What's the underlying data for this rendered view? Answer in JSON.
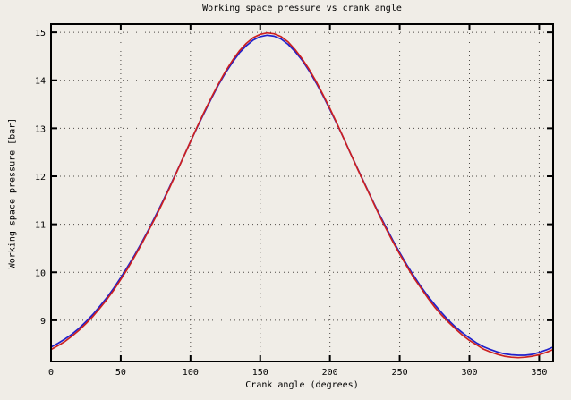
{
  "chart_data": {
    "type": "line",
    "title": "Working space pressure vs crank angle",
    "xlabel": "Crank angle (degrees)",
    "ylabel": "Working space pressure [bar]",
    "xlim": [
      0,
      360
    ],
    "ylim": [
      8.14,
      15.17
    ],
    "xticks": [
      0,
      50,
      100,
      150,
      200,
      250,
      300,
      350
    ],
    "yticks": [
      9,
      10,
      11,
      12,
      13,
      14,
      15
    ],
    "grid": true,
    "legend": "none",
    "background_color": "#f0ede7",
    "x": [
      0,
      5,
      10,
      15,
      20,
      25,
      30,
      35,
      40,
      45,
      50,
      55,
      60,
      65,
      70,
      75,
      80,
      85,
      90,
      95,
      100,
      105,
      110,
      115,
      120,
      125,
      130,
      135,
      140,
      145,
      150,
      155,
      160,
      165,
      170,
      175,
      180,
      185,
      190,
      195,
      200,
      205,
      210,
      215,
      220,
      225,
      230,
      235,
      240,
      245,
      250,
      255,
      260,
      265,
      270,
      275,
      280,
      285,
      290,
      295,
      300,
      305,
      310,
      315,
      320,
      325,
      330,
      335,
      340,
      345,
      350,
      355,
      360
    ],
    "series": [
      {
        "name": "blue-curve",
        "color": "#2020cc",
        "values": [
          8.44,
          8.52,
          8.61,
          8.71,
          8.83,
          8.97,
          9.12,
          9.29,
          9.47,
          9.67,
          9.89,
          10.12,
          10.36,
          10.62,
          10.89,
          11.18,
          11.47,
          11.78,
          12.09,
          12.4,
          12.72,
          13.03,
          13.33,
          13.62,
          13.9,
          14.15,
          14.37,
          14.57,
          14.72,
          14.84,
          14.91,
          14.94,
          14.92,
          14.86,
          14.75,
          14.6,
          14.42,
          14.2,
          13.95,
          13.68,
          13.39,
          13.09,
          12.78,
          12.46,
          12.15,
          11.84,
          11.53,
          11.23,
          10.95,
          10.67,
          10.41,
          10.16,
          9.93,
          9.71,
          9.51,
          9.33,
          9.16,
          9.0,
          8.86,
          8.74,
          8.63,
          8.53,
          8.45,
          8.39,
          8.34,
          8.3,
          8.28,
          8.27,
          8.27,
          8.29,
          8.33,
          8.38,
          8.44
        ]
      },
      {
        "name": "red-curve",
        "color": "#cc2020",
        "values": [
          8.39,
          8.47,
          8.56,
          8.67,
          8.79,
          8.93,
          9.08,
          9.25,
          9.43,
          9.63,
          9.85,
          10.08,
          10.33,
          10.59,
          10.87,
          11.15,
          11.45,
          11.76,
          12.08,
          12.4,
          12.72,
          13.04,
          13.35,
          13.64,
          13.92,
          14.18,
          14.41,
          14.61,
          14.77,
          14.89,
          14.96,
          14.99,
          14.97,
          14.91,
          14.8,
          14.64,
          14.45,
          14.23,
          13.98,
          13.7,
          13.41,
          13.1,
          12.78,
          12.46,
          12.14,
          11.83,
          11.52,
          11.21,
          10.92,
          10.64,
          10.38,
          10.13,
          9.89,
          9.68,
          9.47,
          9.28,
          9.11,
          8.96,
          8.82,
          8.69,
          8.58,
          8.49,
          8.4,
          8.34,
          8.29,
          8.25,
          8.23,
          8.22,
          8.23,
          8.25,
          8.28,
          8.33,
          8.39
        ]
      }
    ]
  }
}
